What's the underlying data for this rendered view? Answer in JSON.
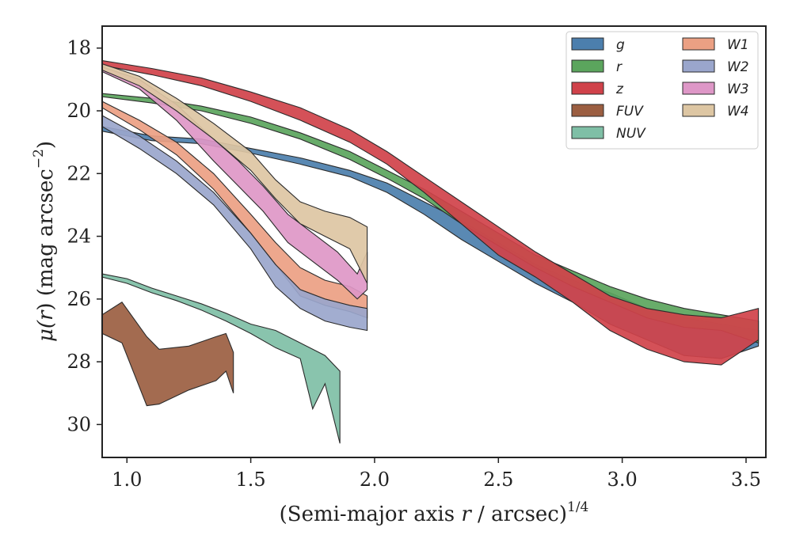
{
  "chart_data": {
    "type": "area",
    "xlabel_pre": "(Semi-major axis ",
    "xlabel_var": "r",
    "xlabel_post": " / arcsec)",
    "xlabel_sup": "1/4",
    "ylabel_mu": "μ(",
    "ylabel_var": "r",
    "ylabel_mid": ") (mag arcsec",
    "ylabel_sup": "−2",
    "ylabel_end": ")",
    "xlim": [
      0.9,
      3.58
    ],
    "ylim": [
      31.05,
      17.3
    ],
    "y_inverted": true,
    "x_ticks": [
      1.0,
      1.5,
      2.0,
      2.5,
      3.0,
      3.5
    ],
    "x_tick_labels": [
      "1.0",
      "1.5",
      "2.0",
      "2.5",
      "3.0",
      "3.5"
    ],
    "y_ticks": [
      18,
      20,
      22,
      24,
      26,
      28,
      30
    ],
    "y_tick_labels": [
      "18",
      "20",
      "22",
      "24",
      "26",
      "28",
      "30"
    ],
    "grid": false,
    "legend_position": "top-right",
    "legend_columns": 2,
    "series": [
      {
        "name": "g",
        "color": "#4c7fad",
        "x": [
          0.9,
          1.1,
          1.3,
          1.5,
          1.7,
          1.9,
          2.05,
          2.2,
          2.35,
          2.5,
          2.65,
          2.8,
          2.95,
          3.1,
          3.25,
          3.4,
          3.55
        ],
        "y_top": [
          20.5,
          20.8,
          20.9,
          21.2,
          21.5,
          21.9,
          22.3,
          22.9,
          23.5,
          24.2,
          24.9,
          25.4,
          25.8,
          26.3,
          26.6,
          26.8,
          27.0
        ],
        "y_bottom": [
          20.65,
          20.95,
          21.05,
          21.35,
          21.7,
          22.1,
          22.6,
          23.3,
          24.1,
          24.8,
          25.5,
          26.1,
          26.8,
          27.3,
          27.8,
          27.9,
          27.5
        ]
      },
      {
        "name": "r",
        "color": "#5ba55d",
        "x": [
          0.9,
          1.1,
          1.3,
          1.5,
          1.7,
          1.9,
          2.05,
          2.2,
          2.35,
          2.5,
          2.65,
          2.8,
          2.95,
          3.1,
          3.25,
          3.4,
          3.55
        ],
        "y_top": [
          19.45,
          19.6,
          19.85,
          20.2,
          20.7,
          21.3,
          21.9,
          22.5,
          23.2,
          23.9,
          24.6,
          25.1,
          25.6,
          26.0,
          26.3,
          26.5,
          26.7
        ],
        "y_bottom": [
          19.55,
          19.75,
          20.0,
          20.4,
          20.9,
          21.55,
          22.15,
          22.8,
          23.6,
          24.3,
          25.0,
          25.6,
          26.1,
          26.6,
          26.9,
          27.0,
          27.4
        ]
      },
      {
        "name": "z",
        "color": "#d0424a",
        "x": [
          0.9,
          1.1,
          1.3,
          1.5,
          1.7,
          1.9,
          2.05,
          2.2,
          2.35,
          2.5,
          2.65,
          2.8,
          2.95,
          3.1,
          3.25,
          3.4,
          3.55
        ],
        "y_top": [
          18.4,
          18.65,
          18.95,
          19.4,
          19.9,
          20.6,
          21.3,
          22.1,
          22.9,
          23.7,
          24.5,
          25.2,
          25.9,
          26.3,
          26.5,
          26.6,
          26.3
        ],
        "y_bottom": [
          18.55,
          18.85,
          19.2,
          19.7,
          20.3,
          21.0,
          21.7,
          22.6,
          23.6,
          24.6,
          25.3,
          26.1,
          27.0,
          27.6,
          28.0,
          28.1,
          27.3
        ]
      },
      {
        "name": "FUV",
        "color": "#9b5e41",
        "x": [
          0.9,
          0.98,
          1.08,
          1.13,
          1.25,
          1.36,
          1.4,
          1.43
        ],
        "y_top": [
          26.5,
          26.1,
          27.2,
          27.6,
          27.5,
          27.2,
          27.1,
          27.7
        ],
        "y_bottom": [
          27.1,
          27.4,
          29.4,
          29.35,
          28.9,
          28.6,
          28.3,
          29.0
        ]
      },
      {
        "name": "NUV",
        "color": "#7fbfa6",
        "x": [
          0.9,
          1.0,
          1.1,
          1.2,
          1.3,
          1.4,
          1.5,
          1.6,
          1.7,
          1.75,
          1.8,
          1.86
        ],
        "y_top": [
          25.2,
          25.35,
          25.65,
          25.9,
          26.15,
          26.45,
          26.8,
          27.0,
          27.4,
          27.6,
          27.8,
          28.3
        ],
        "y_bottom": [
          25.3,
          25.5,
          25.8,
          26.05,
          26.35,
          26.7,
          27.1,
          27.55,
          27.9,
          29.5,
          28.7,
          30.6
        ]
      },
      {
        "name": "W1",
        "color": "#eba083",
        "x": [
          0.9,
          1.05,
          1.2,
          1.35,
          1.5,
          1.6,
          1.7,
          1.8,
          1.9,
          1.97
        ],
        "y_top": [
          19.7,
          20.3,
          21.0,
          22.0,
          23.3,
          24.2,
          25.0,
          25.4,
          25.6,
          25.9
        ],
        "y_bottom": [
          19.9,
          20.6,
          21.4,
          22.5,
          23.9,
          24.9,
          25.9,
          26.2,
          26.4,
          26.6
        ]
      },
      {
        "name": "W2",
        "color": "#9aa6cc",
        "x": [
          0.9,
          1.05,
          1.2,
          1.35,
          1.5,
          1.6,
          1.7,
          1.8,
          1.9,
          1.97
        ],
        "y_top": [
          20.15,
          20.8,
          21.6,
          22.6,
          23.9,
          24.9,
          25.7,
          26.0,
          26.2,
          26.3
        ],
        "y_bottom": [
          20.5,
          21.2,
          22.0,
          23.0,
          24.4,
          25.6,
          26.3,
          26.7,
          26.9,
          27.0
        ]
      },
      {
        "name": "W3",
        "color": "#de97c7",
        "x": [
          0.9,
          1.05,
          1.2,
          1.35,
          1.45,
          1.55,
          1.65,
          1.75,
          1.85,
          1.93,
          1.97
        ],
        "y_top": [
          18.6,
          19.0,
          19.8,
          20.9,
          21.6,
          22.4,
          23.3,
          23.9,
          24.5,
          25.2,
          24.5
        ],
        "y_bottom": [
          18.75,
          19.3,
          20.3,
          21.6,
          22.4,
          23.2,
          24.2,
          24.8,
          25.4,
          26.0,
          25.7
        ]
      },
      {
        "name": "W4",
        "color": "#ddc6a3",
        "x": [
          0.9,
          1.05,
          1.2,
          1.35,
          1.5,
          1.6,
          1.7,
          1.8,
          1.9,
          1.97
        ],
        "y_top": [
          18.5,
          18.9,
          19.6,
          20.4,
          21.3,
          22.2,
          22.9,
          23.2,
          23.4,
          23.7
        ],
        "y_bottom": [
          18.7,
          19.2,
          20.0,
          20.9,
          21.9,
          22.8,
          23.6,
          24.0,
          24.4,
          25.5
        ]
      }
    ]
  }
}
